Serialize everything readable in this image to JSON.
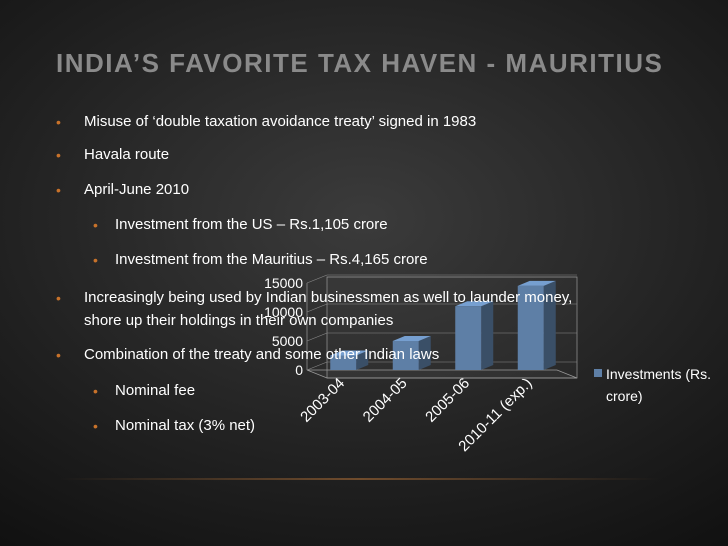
{
  "slide": {
    "title": "INDIA’S FAVORITE TAX HAVEN -  MAURITIUS",
    "accent_color": "#c8722a",
    "title_color": "#8a8a8a",
    "bullets": [
      {
        "text": "Misuse of ‘double taxation avoidance treaty’ signed in 1983",
        "level": 1
      },
      {
        "text": "Havala route",
        "level": 1
      },
      {
        "text": "April-June 2010",
        "level": 1
      },
      {
        "text": "Investment from the US – Rs.1,105 crore",
        "level": 2
      },
      {
        "text": "Investment from the Mauritius – Rs.4,165 crore",
        "level": 2
      },
      {
        "text": "Increasingly being used by Indian businessmen as well to launder money,",
        "level": 1
      },
      {
        "text": "shore up their holdings in their own companies",
        "level": 0
      },
      {
        "text": "Combination of the treaty and some other Indian laws",
        "level": 1
      },
      {
        "text": "Nominal fee",
        "level": 2
      },
      {
        "text": "Nominal tax (3% net)",
        "level": 2
      }
    ]
  },
  "chart_data": {
    "type": "bar",
    "title": "",
    "xlabel": "",
    "ylabel": "",
    "categories": [
      "2003-04",
      "2004-05",
      "2005-06",
      "2010-11 (exp.)"
    ],
    "series": [
      {
        "name": "Investments (Rs. crore)",
        "values": [
          2500,
          5000,
          11000,
          14500
        ],
        "color": "#5e7fa6"
      }
    ],
    "ylim": [
      0,
      15000
    ],
    "yticks": [
      0,
      5000,
      10000,
      15000
    ],
    "legend": "right",
    "grid": true,
    "bar_style": "3d"
  }
}
